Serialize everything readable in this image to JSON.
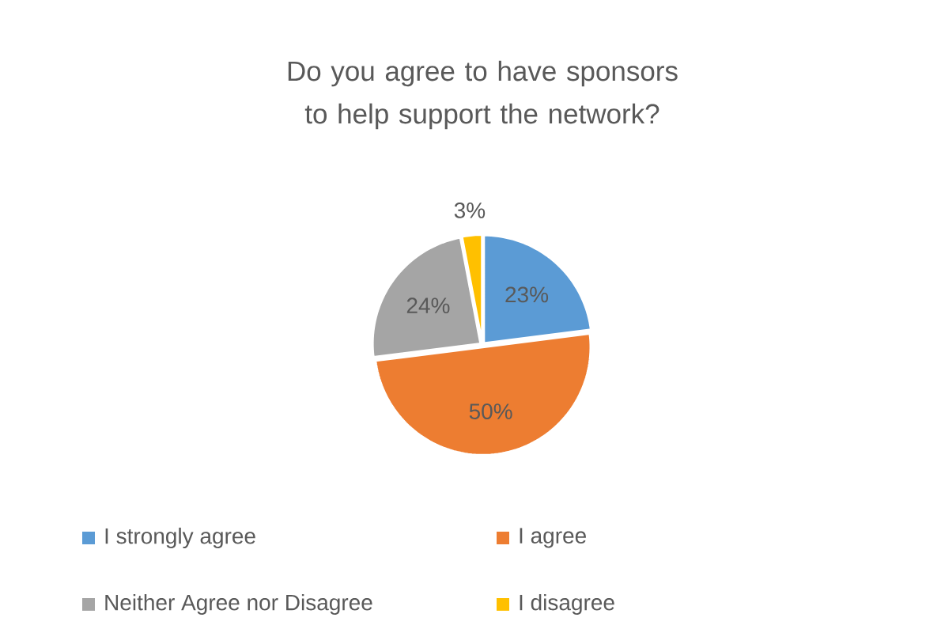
{
  "chart_data": {
    "type": "pie",
    "title": "Do you agree to have sponsors to help support the network?",
    "categories": [
      "I strongly agree",
      "I agree",
      "Neither Agree nor Disagree",
      "I disagree"
    ],
    "values": [
      23,
      50,
      24,
      3
    ],
    "colors": [
      "#5b9bd5",
      "#ed7d31",
      "#a5a5a5",
      "#ffc000"
    ],
    "value_labels": [
      "23%",
      "50%",
      "24%",
      "3%"
    ],
    "legend": "bottom"
  }
}
